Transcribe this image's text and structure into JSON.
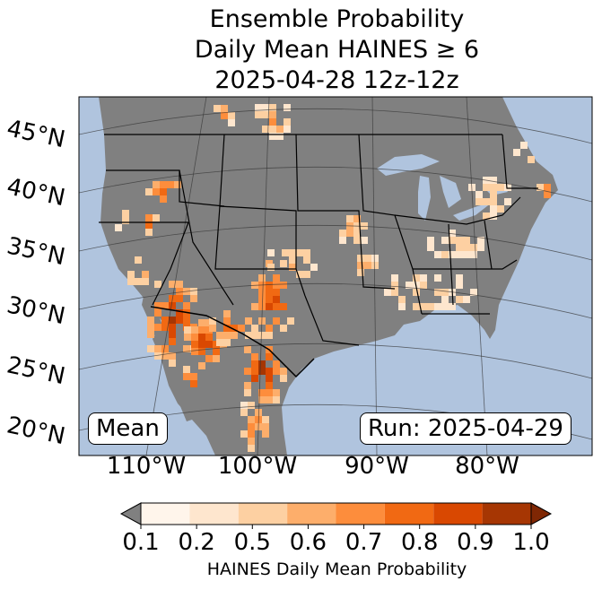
{
  "title": {
    "line1": "Ensemble Probability",
    "line2": "Daily Mean HAINES ≥ 6",
    "line3": "2025-04-28 12z-12z"
  },
  "map": {
    "latitude_labels": [
      "45°N",
      "40°N",
      "35°N",
      "30°N",
      "25°N",
      "20°N"
    ],
    "longitude_labels": [
      "110°W",
      "100°W",
      "90°W",
      "80°W"
    ],
    "mean_box": "Mean",
    "run_box": "Run: 2025-04-29",
    "colors": {
      "ocean": "#b0c4de",
      "land_no_data": "#808080",
      "boundary": "#000000"
    },
    "hotspots": [
      {
        "region": "Desert Southwest / Arizona",
        "probability": 1.0
      },
      {
        "region": "New Mexico / West Texas",
        "probability": 0.9
      },
      {
        "region": "Northern Nevada",
        "probability": 0.9
      },
      {
        "region": "Southern New England",
        "probability": 0.8
      }
    ]
  },
  "colorbar": {
    "ticks": [
      "0.1",
      "0.2",
      "0.5",
      "0.6",
      "0.7",
      "0.8",
      "0.9",
      "1.0"
    ],
    "colors": [
      "#fff5eb",
      "#fee6ce",
      "#fdd0a2",
      "#fdae6b",
      "#fd8d3c",
      "#f16913",
      "#d94801",
      "#a63603"
    ],
    "under_color": "#808080",
    "over_color": "#7f2704",
    "label": "HAINES Daily Mean Probability"
  }
}
